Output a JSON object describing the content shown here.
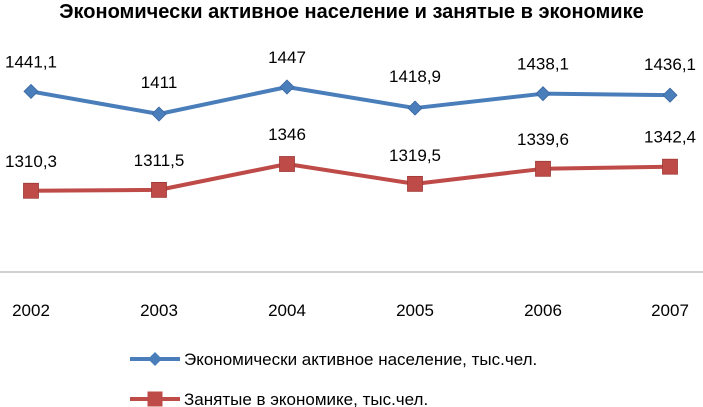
{
  "chart_data": {
    "type": "line",
    "title": "Экономически активное население и занятые в экономике",
    "categories": [
      "2002",
      "2003",
      "2004",
      "2005",
      "2006",
      "2007"
    ],
    "series": [
      {
        "name": "Экономически активное население, тыс.чел.",
        "values": [
          1441.1,
          1411,
          1447,
          1418.9,
          1438.1,
          1436.1
        ],
        "labels": [
          "1441,1",
          "1411",
          "1447",
          "1418,9",
          "1438,1",
          "1436,1"
        ],
        "color": "#4a7ebb",
        "marker": "diamond"
      },
      {
        "name": "Занятые в экономике, тыс.чел.",
        "values": [
          1310.3,
          1311.5,
          1346,
          1319.5,
          1339.6,
          1342.4
        ],
        "labels": [
          "1310,3",
          "1311,5",
          "1346",
          "1319,5",
          "1339,6",
          "1342,4"
        ],
        "color": "#be4b48",
        "marker": "square"
      }
    ],
    "grid": false,
    "legend_position": "bottom"
  }
}
